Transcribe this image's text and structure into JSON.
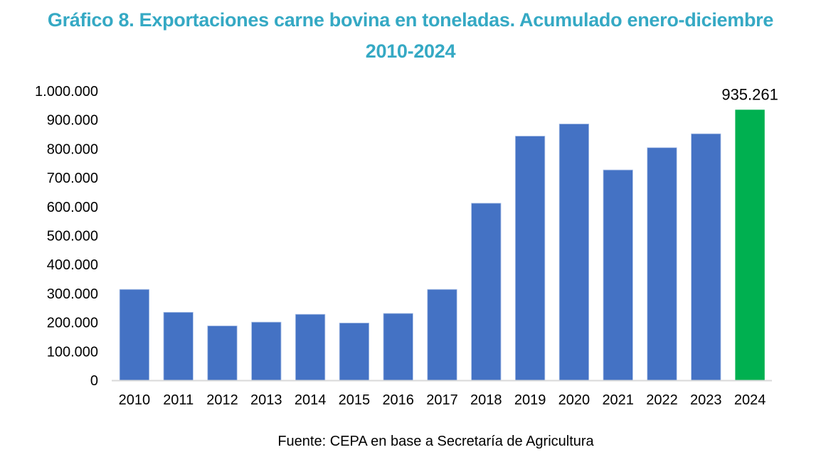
{
  "chart_data": {
    "type": "bar",
    "title": "Gráfico 8. Exportaciones carne bovina en toneladas. Acumulado enero-diciembre 2010-2024",
    "title_lines": [
      "Gráfico 8. Exportaciones carne bovina en toneladas. Acumulado enero-diciembre",
      "2010-2024"
    ],
    "xlabel": "",
    "ylabel": "",
    "categories": [
      "2010",
      "2011",
      "2012",
      "2013",
      "2014",
      "2015",
      "2016",
      "2017",
      "2018",
      "2019",
      "2020",
      "2021",
      "2022",
      "2023",
      "2024"
    ],
    "values": [
      314000,
      235000,
      188000,
      201000,
      228000,
      198000,
      231000,
      314000,
      612000,
      844000,
      886000,
      727000,
      804000,
      852000,
      935261
    ],
    "ylim": [
      0,
      1000000
    ],
    "yticks": [
      0,
      100000,
      200000,
      300000,
      400000,
      500000,
      600000,
      700000,
      800000,
      900000,
      1000000
    ],
    "ytick_labels": [
      "0",
      "100.000",
      "200.000",
      "300.000",
      "400.000",
      "500.000",
      "600.000",
      "700.000",
      "800.000",
      "900.000",
      "1.000.000"
    ],
    "grid": false,
    "legend": "none",
    "colors": {
      "default": "#4472c4",
      "highlight": "#00b050",
      "axis": "#d9d9d9",
      "title": "#35a9c4"
    },
    "highlight_index": 14,
    "data_labels": [
      {
        "index": 14,
        "text": "935.261"
      }
    ],
    "source": "Fuente: CEPA en base a Secretaría de Agricultura"
  }
}
